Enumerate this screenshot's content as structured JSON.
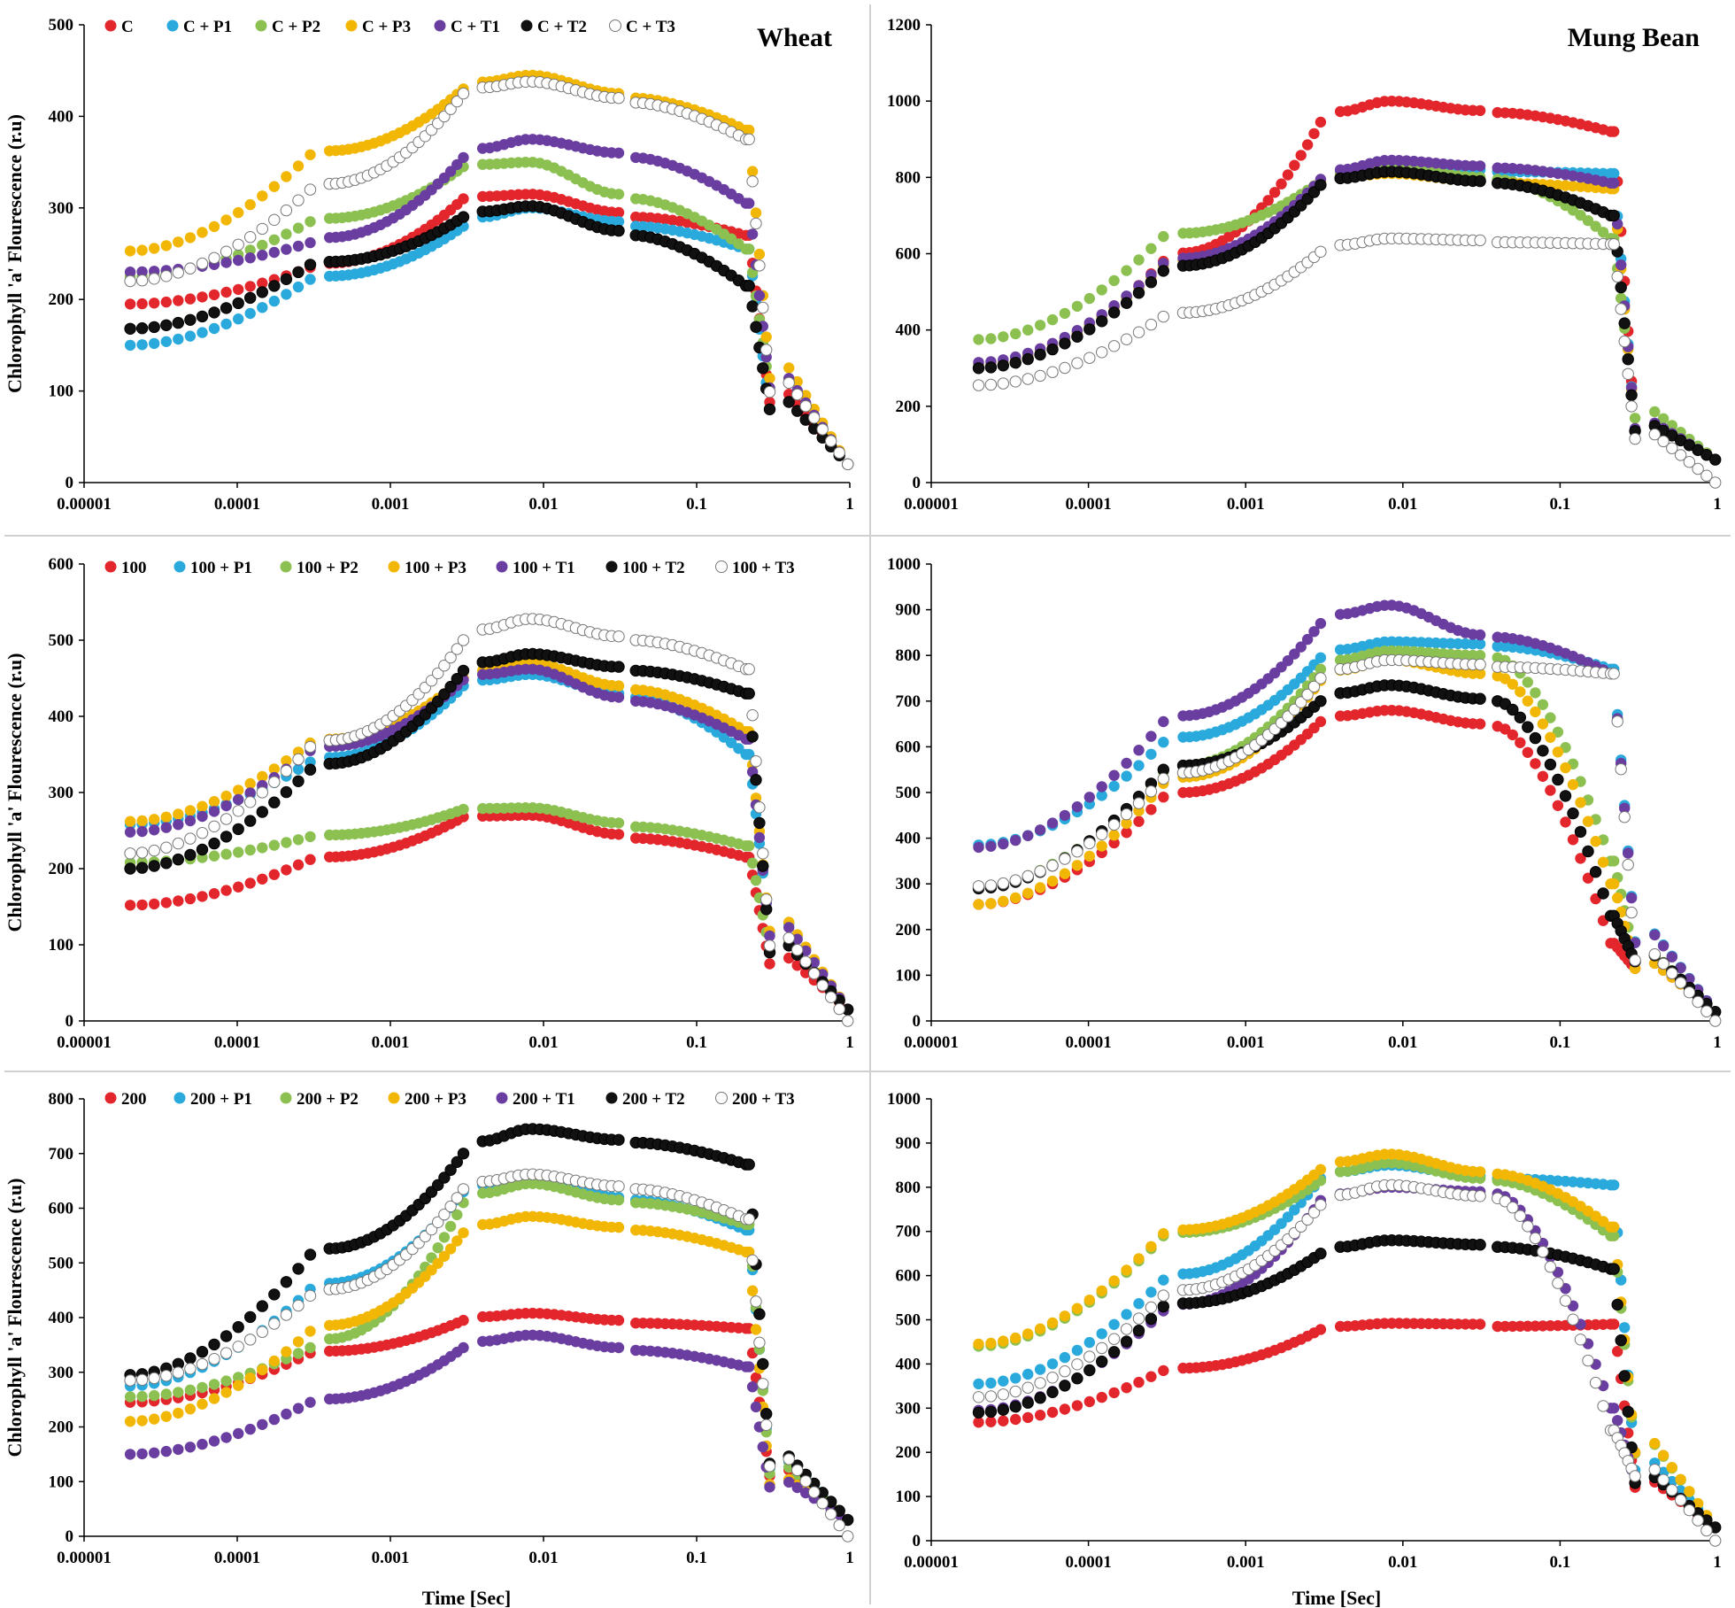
{
  "figure": {
    "ylabel": "Chlorophyll 'a' Flourescence (r.u)",
    "xlabel": "Time [Sec]",
    "x_ticks": [
      1e-05,
      0.0001,
      0.001,
      0.01,
      0.1,
      1
    ],
    "x_tick_labels": [
      "0.00001",
      "0.0001",
      "0.001",
      "0.01",
      "0.1",
      "1"
    ],
    "colors": [
      "#e3262c",
      "#29a9dc",
      "#8cc152",
      "#f2b705",
      "#6a3da0",
      "#111111",
      "#ffffff"
    ]
  },
  "chart_data": [
    {
      "type": "scatter",
      "xscale": "log",
      "xlim": [
        1e-05,
        1
      ],
      "ylim": [
        0,
        500
      ],
      "yticks": [
        0,
        100,
        200,
        300,
        400,
        500
      ],
      "title": "Wheat",
      "ylabel": "Chlorophyll 'a' Flourescence (r.u)",
      "xlabel": "",
      "legend": [
        "C",
        "C + P1",
        "C + P2",
        "C + P3",
        "C + T1",
        "C + T2",
        "C + T3"
      ],
      "series": [
        {
          "name": "C",
          "O": 195,
          "K": 235,
          "J": 310,
          "I": 295,
          "P": 315,
          "S": 270,
          "E": 20
        },
        {
          "name": "C + P1",
          "O": 150,
          "K": 222,
          "J": 280,
          "I": 285,
          "P": 300,
          "S": 255,
          "E": 20
        },
        {
          "name": "C + P2",
          "O": 225,
          "K": 285,
          "J": 345,
          "I": 315,
          "P": 350,
          "S": 255,
          "E": 20
        },
        {
          "name": "C + P3",
          "O": 253,
          "K": 358,
          "J": 430,
          "I": 425,
          "P": 445,
          "S": 385,
          "E": 20
        },
        {
          "name": "C + T1",
          "O": 230,
          "K": 262,
          "J": 355,
          "I": 360,
          "P": 375,
          "S": 305,
          "E": 20
        },
        {
          "name": "C + T2",
          "O": 168,
          "K": 238,
          "J": 290,
          "I": 275,
          "P": 302,
          "S": 215,
          "E": 20
        },
        {
          "name": "C + T3",
          "O": 220,
          "K": 320,
          "J": 425,
          "I": 420,
          "P": 438,
          "S": 375,
          "E": 20
        }
      ]
    },
    {
      "type": "scatter",
      "xscale": "log",
      "xlim": [
        1e-05,
        1
      ],
      "ylim": [
        0,
        1200
      ],
      "yticks": [
        0,
        200,
        400,
        600,
        800,
        1000,
        1200
      ],
      "title": "Mung Bean",
      "ylabel": "",
      "xlabel": "",
      "legend": [],
      "series": [
        {
          "name": "C",
          "O": 300,
          "K": 580,
          "J": 945,
          "I": 975,
          "P": 1000,
          "S": 920,
          "E": 60
        },
        {
          "name": "C + P1",
          "O": 310,
          "K": 570,
          "J": 790,
          "I": 820,
          "P": 835,
          "S": 810,
          "E": 60
        },
        {
          "name": "C + P2",
          "O": 375,
          "K": 645,
          "J": 790,
          "I": 800,
          "P": 830,
          "S": 640,
          "E": 60
        },
        {
          "name": "C + P3",
          "O": 310,
          "K": 570,
          "J": 790,
          "I": 790,
          "P": 810,
          "S": 770,
          "E": 60
        },
        {
          "name": "C + T1",
          "O": 315,
          "K": 575,
          "J": 795,
          "I": 830,
          "P": 845,
          "S": 785,
          "E": 60
        },
        {
          "name": "C + T2",
          "O": 300,
          "K": 555,
          "J": 780,
          "I": 790,
          "P": 815,
          "S": 700,
          "E": 60
        },
        {
          "name": "C + T3",
          "O": 255,
          "K": 435,
          "J": 605,
          "I": 635,
          "P": 640,
          "S": 625,
          "E": 0
        }
      ]
    },
    {
      "type": "scatter",
      "xscale": "log",
      "xlim": [
        1e-05,
        1
      ],
      "ylim": [
        0,
        600
      ],
      "yticks": [
        0,
        100,
        200,
        300,
        400,
        500,
        600
      ],
      "title": "",
      "ylabel": "Chlorophyll 'a' Flourescence (r.u)",
      "xlabel": "",
      "legend": [
        "100",
        "100 + P1",
        "100 + P2",
        "100 + P3",
        "100 + T1",
        "100 + T2",
        "100 + T3"
      ],
      "series": [
        {
          "name": "100",
          "O": 152,
          "K": 212,
          "J": 268,
          "I": 245,
          "P": 270,
          "S": 215,
          "E": 15
        },
        {
          "name": "100 + P1",
          "O": 258,
          "K": 340,
          "J": 440,
          "I": 430,
          "P": 455,
          "S": 350,
          "E": 15
        },
        {
          "name": "100 + P2",
          "O": 208,
          "K": 242,
          "J": 278,
          "I": 260,
          "P": 280,
          "S": 230,
          "E": 15
        },
        {
          "name": "100 + P3",
          "O": 262,
          "K": 365,
          "J": 450,
          "I": 440,
          "P": 470,
          "S": 380,
          "E": 15
        },
        {
          "name": "100 + T1",
          "O": 248,
          "K": 355,
          "J": 448,
          "I": 425,
          "P": 462,
          "S": 370,
          "E": 15
        },
        {
          "name": "100 + T2",
          "O": 200,
          "K": 330,
          "J": 460,
          "I": 465,
          "P": 482,
          "S": 430,
          "E": 15
        },
        {
          "name": "100 + T3",
          "O": 220,
          "K": 360,
          "J": 500,
          "I": 505,
          "P": 528,
          "S": 462,
          "E": 0
        }
      ]
    },
    {
      "type": "scatter",
      "xscale": "log",
      "xlim": [
        1e-05,
        1
      ],
      "ylim": [
        0,
        1000
      ],
      "yticks": [
        0,
        100,
        200,
        300,
        400,
        500,
        600,
        700,
        800,
        900,
        1000
      ],
      "title": "",
      "ylabel": "",
      "xlabel": "",
      "legend": [],
      "series": [
        {
          "name": "100",
          "O": 255,
          "K": 490,
          "J": 655,
          "I": 650,
          "P": 680,
          "S": 170,
          "E": 20
        },
        {
          "name": "100 + P1",
          "O": 385,
          "K": 610,
          "J": 795,
          "I": 825,
          "P": 830,
          "S": 770,
          "E": 20
        },
        {
          "name": "100 + P2",
          "O": 295,
          "K": 545,
          "J": 770,
          "I": 800,
          "P": 810,
          "S": 350,
          "E": 20
        },
        {
          "name": "100 + P3",
          "O": 255,
          "K": 520,
          "J": 745,
          "I": 760,
          "P": 790,
          "S": 300,
          "E": 20
        },
        {
          "name": "100 + T1",
          "O": 380,
          "K": 655,
          "J": 870,
          "I": 845,
          "P": 910,
          "S": 760,
          "E": 20
        },
        {
          "name": "100 + T2",
          "O": 290,
          "K": 550,
          "J": 700,
          "I": 705,
          "P": 735,
          "S": 230,
          "E": 20
        },
        {
          "name": "100 + T3",
          "O": 295,
          "K": 530,
          "J": 750,
          "I": 780,
          "P": 790,
          "S": 760,
          "E": 0
        }
      ]
    },
    {
      "type": "scatter",
      "xscale": "log",
      "xlim": [
        1e-05,
        1
      ],
      "ylim": [
        0,
        800
      ],
      "yticks": [
        0,
        100,
        200,
        300,
        400,
        500,
        600,
        700,
        800
      ],
      "title": "",
      "ylabel": "Chlorophyll 'a' Flourescence (r.u)",
      "xlabel": "Time [Sec]",
      "legend": [
        "200",
        "200 + P1",
        "200 + P2",
        "200 + P3",
        "200 + T1",
        "200 + T2",
        "200 + T3"
      ],
      "series": [
        {
          "name": "200",
          "O": 245,
          "K": 335,
          "J": 395,
          "I": 395,
          "P": 408,
          "S": 380,
          "E": 30
        },
        {
          "name": "200 + P1",
          "O": 275,
          "K": 452,
          "J": 630,
          "I": 620,
          "P": 655,
          "S": 560,
          "E": 30
        },
        {
          "name": "200 + P2",
          "O": 255,
          "K": 345,
          "J": 610,
          "I": 615,
          "P": 645,
          "S": 570,
          "E": 30
        },
        {
          "name": "200 + P3",
          "O": 210,
          "K": 375,
          "J": 555,
          "I": 565,
          "P": 585,
          "S": 520,
          "E": 30
        },
        {
          "name": "200 + T1",
          "O": 150,
          "K": 245,
          "J": 345,
          "I": 345,
          "P": 368,
          "S": 310,
          "E": 30
        },
        {
          "name": "200 + T2",
          "O": 295,
          "K": 515,
          "J": 700,
          "I": 725,
          "P": 745,
          "S": 680,
          "E": 30
        },
        {
          "name": "200 + T3",
          "O": 285,
          "K": 440,
          "J": 635,
          "I": 640,
          "P": 662,
          "S": 580,
          "E": 0
        }
      ]
    },
    {
      "type": "scatter",
      "xscale": "log",
      "xlim": [
        1e-05,
        1
      ],
      "ylim": [
        0,
        1000
      ],
      "yticks": [
        0,
        100,
        200,
        300,
        400,
        500,
        600,
        700,
        800,
        900,
        1000
      ],
      "title": "",
      "ylabel": "",
      "xlabel": "Time [Sec]",
      "legend": [],
      "series": [
        {
          "name": "200",
          "O": 268,
          "K": 385,
          "J": 478,
          "I": 490,
          "P": 492,
          "S": 490,
          "E": 30
        },
        {
          "name": "200 + P1",
          "O": 355,
          "K": 590,
          "J": 820,
          "I": 825,
          "P": 850,
          "S": 805,
          "E": 30
        },
        {
          "name": "200 + P2",
          "O": 440,
          "K": 690,
          "J": 815,
          "I": 820,
          "P": 855,
          "S": 690,
          "E": 30
        },
        {
          "name": "200 + P3",
          "O": 445,
          "K": 695,
          "J": 840,
          "I": 835,
          "P": 875,
          "S": 710,
          "E": 30
        },
        {
          "name": "200 + T1",
          "O": 295,
          "K": 520,
          "J": 770,
          "I": 790,
          "P": 800,
          "S": 300,
          "E": 30
        },
        {
          "name": "200 + T2",
          "O": 290,
          "K": 530,
          "J": 650,
          "I": 670,
          "P": 680,
          "S": 615,
          "E": 30
        },
        {
          "name": "200 + T3",
          "O": 325,
          "K": 555,
          "J": 760,
          "I": 780,
          "P": 805,
          "S": 250,
          "E": 0
        }
      ]
    }
  ]
}
